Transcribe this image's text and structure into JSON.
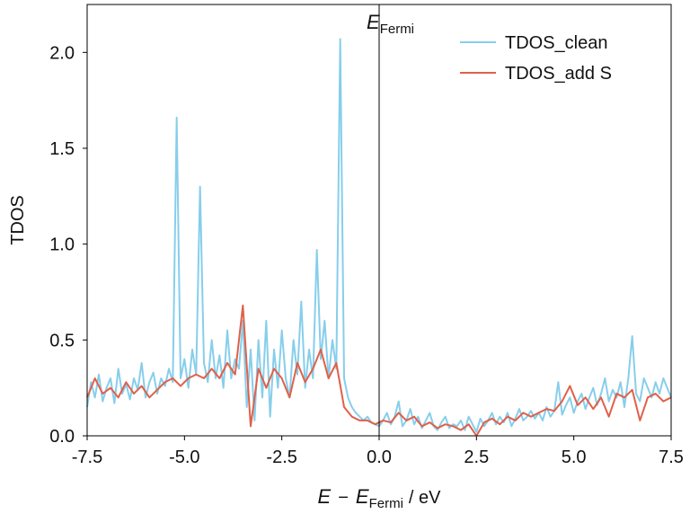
{
  "chart_data": {
    "type": "line",
    "ylabel": "TDOS",
    "xlabel": [
      "E",
      "−",
      "E",
      "Fermi",
      "/ eV"
    ],
    "annotation": [
      "E",
      "Fermi"
    ],
    "vline": 0,
    "xlim": [
      -7.5,
      7.5
    ],
    "ylim": [
      0,
      2.25
    ],
    "xticks": [
      -7.5,
      {
        "value": -5,
        "label": "-5.0"
      },
      -2.5,
      {
        "value": 0,
        "label": "0.0"
      },
      2.5,
      {
        "value": 5,
        "label": "5.0"
      },
      7.5
    ],
    "yticks": [
      {
        "value": 0,
        "label": "0.0"
      },
      0.5,
      {
        "value": 1,
        "label": "1.0"
      },
      1.5,
      {
        "value": 2,
        "label": "2.0"
      }
    ],
    "legend": "upper right",
    "series": [
      {
        "name": "TDOS_clean",
        "color": "#87ceeb",
        "x": [
          -7.5,
          -7.4,
          -7.3,
          -7.2,
          -7.1,
          -7.0,
          -6.9,
          -6.8,
          -6.7,
          -6.6,
          -6.5,
          -6.4,
          -6.3,
          -6.2,
          -6.1,
          -6.0,
          -5.9,
          -5.8,
          -5.7,
          -5.6,
          -5.5,
          -5.4,
          -5.3,
          -5.2,
          -5.1,
          -5.0,
          -4.9,
          -4.8,
          -4.7,
          -4.6,
          -4.5,
          -4.4,
          -4.3,
          -4.2,
          -4.1,
          -4.0,
          -3.9,
          -3.8,
          -3.7,
          -3.6,
          -3.5,
          -3.4,
          -3.3,
          -3.2,
          -3.1,
          -3.0,
          -2.9,
          -2.8,
          -2.7,
          -2.6,
          -2.5,
          -2.4,
          -2.3,
          -2.2,
          -2.1,
          -2.0,
          -1.9,
          -1.8,
          -1.7,
          -1.6,
          -1.5,
          -1.4,
          -1.3,
          -1.2,
          -1.1,
          -1.0,
          -0.9,
          -0.8,
          -0.7,
          -0.6,
          -0.5,
          -0.4,
          -0.3,
          -0.2,
          -0.1,
          0.0,
          0.1,
          0.2,
          0.3,
          0.4,
          0.5,
          0.6,
          0.7,
          0.8,
          0.9,
          1.0,
          1.1,
          1.2,
          1.3,
          1.4,
          1.5,
          1.6,
          1.7,
          1.8,
          1.9,
          2.0,
          2.1,
          2.2,
          2.3,
          2.4,
          2.5,
          2.6,
          2.7,
          2.8,
          2.9,
          3.0,
          3.1,
          3.2,
          3.3,
          3.4,
          3.5,
          3.6,
          3.7,
          3.8,
          3.9,
          4.0,
          4.1,
          4.2,
          4.3,
          4.4,
          4.5,
          4.6,
          4.7,
          4.8,
          4.9,
          5.0,
          5.1,
          5.2,
          5.3,
          5.4,
          5.5,
          5.6,
          5.7,
          5.8,
          5.9,
          6.0,
          6.1,
          6.2,
          6.3,
          6.4,
          6.5,
          6.6,
          6.7,
          6.8,
          6.9,
          7.0,
          7.1,
          7.2,
          7.3,
          7.4,
          7.5
        ],
        "values": [
          0.15,
          0.28,
          0.2,
          0.32,
          0.18,
          0.25,
          0.3,
          0.17,
          0.35,
          0.22,
          0.27,
          0.19,
          0.3,
          0.24,
          0.38,
          0.2,
          0.28,
          0.33,
          0.22,
          0.3,
          0.26,
          0.35,
          0.28,
          1.66,
          0.3,
          0.4,
          0.25,
          0.45,
          0.32,
          1.3,
          0.38,
          0.28,
          0.5,
          0.3,
          0.42,
          0.25,
          0.55,
          0.3,
          0.4,
          0.35,
          0.6,
          0.15,
          0.45,
          0.08,
          0.5,
          0.2,
          0.6,
          0.1,
          0.45,
          0.25,
          0.55,
          0.3,
          0.2,
          0.5,
          0.32,
          0.7,
          0.25,
          0.45,
          0.3,
          0.97,
          0.4,
          0.6,
          0.3,
          0.5,
          0.35,
          2.07,
          0.3,
          0.2,
          0.15,
          0.12,
          0.1,
          0.08,
          0.1,
          0.07,
          0.06,
          0.05,
          0.08,
          0.12,
          0.06,
          0.1,
          0.18,
          0.05,
          0.08,
          0.14,
          0.06,
          0.1,
          0.04,
          0.08,
          0.12,
          0.05,
          0.03,
          0.07,
          0.1,
          0.04,
          0.06,
          0.05,
          0.08,
          0.03,
          0.1,
          0.06,
          0.02,
          0.09,
          0.05,
          0.08,
          0.12,
          0.06,
          0.1,
          0.07,
          0.12,
          0.05,
          0.09,
          0.14,
          0.08,
          0.1,
          0.13,
          0.09,
          0.12,
          0.08,
          0.15,
          0.1,
          0.13,
          0.28,
          0.11,
          0.16,
          0.2,
          0.12,
          0.18,
          0.22,
          0.14,
          0.2,
          0.25,
          0.16,
          0.22,
          0.3,
          0.18,
          0.24,
          0.2,
          0.28,
          0.15,
          0.3,
          0.52,
          0.22,
          0.18,
          0.3,
          0.25,
          0.2,
          0.28,
          0.22,
          0.3,
          0.25,
          0.2
        ]
      },
      {
        "name": "TDOS_add S",
        "color": "#e0604a",
        "x": [
          -7.5,
          -7.3,
          -7.1,
          -6.9,
          -6.7,
          -6.5,
          -6.3,
          -6.1,
          -5.9,
          -5.7,
          -5.5,
          -5.3,
          -5.1,
          -4.9,
          -4.7,
          -4.5,
          -4.3,
          -4.1,
          -3.9,
          -3.7,
          -3.5,
          -3.3,
          -3.1,
          -2.9,
          -2.7,
          -2.5,
          -2.3,
          -2.1,
          -1.9,
          -1.7,
          -1.5,
          -1.3,
          -1.1,
          -0.9,
          -0.7,
          -0.5,
          -0.3,
          -0.1,
          0.1,
          0.3,
          0.5,
          0.7,
          0.9,
          1.1,
          1.3,
          1.5,
          1.7,
          1.9,
          2.1,
          2.3,
          2.5,
          2.7,
          2.9,
          3.1,
          3.3,
          3.5,
          3.7,
          3.9,
          4.1,
          4.3,
          4.5,
          4.7,
          4.9,
          5.1,
          5.3,
          5.5,
          5.7,
          5.9,
          6.1,
          6.3,
          6.5,
          6.7,
          6.9,
          7.1,
          7.3,
          7.5
        ],
        "values": [
          0.2,
          0.3,
          0.22,
          0.25,
          0.2,
          0.28,
          0.22,
          0.26,
          0.2,
          0.24,
          0.28,
          0.3,
          0.26,
          0.3,
          0.32,
          0.3,
          0.35,
          0.3,
          0.38,
          0.32,
          0.68,
          0.05,
          0.35,
          0.25,
          0.35,
          0.3,
          0.2,
          0.38,
          0.28,
          0.35,
          0.45,
          0.3,
          0.38,
          0.15,
          0.1,
          0.08,
          0.08,
          0.06,
          0.08,
          0.07,
          0.12,
          0.08,
          0.1,
          0.05,
          0.07,
          0.04,
          0.06,
          0.05,
          0.03,
          0.06,
          0.0,
          0.07,
          0.09,
          0.06,
          0.1,
          0.08,
          0.12,
          0.1,
          0.12,
          0.14,
          0.13,
          0.18,
          0.26,
          0.16,
          0.2,
          0.14,
          0.2,
          0.1,
          0.22,
          0.2,
          0.24,
          0.08,
          0.2,
          0.22,
          0.18,
          0.2
        ]
      }
    ]
  }
}
